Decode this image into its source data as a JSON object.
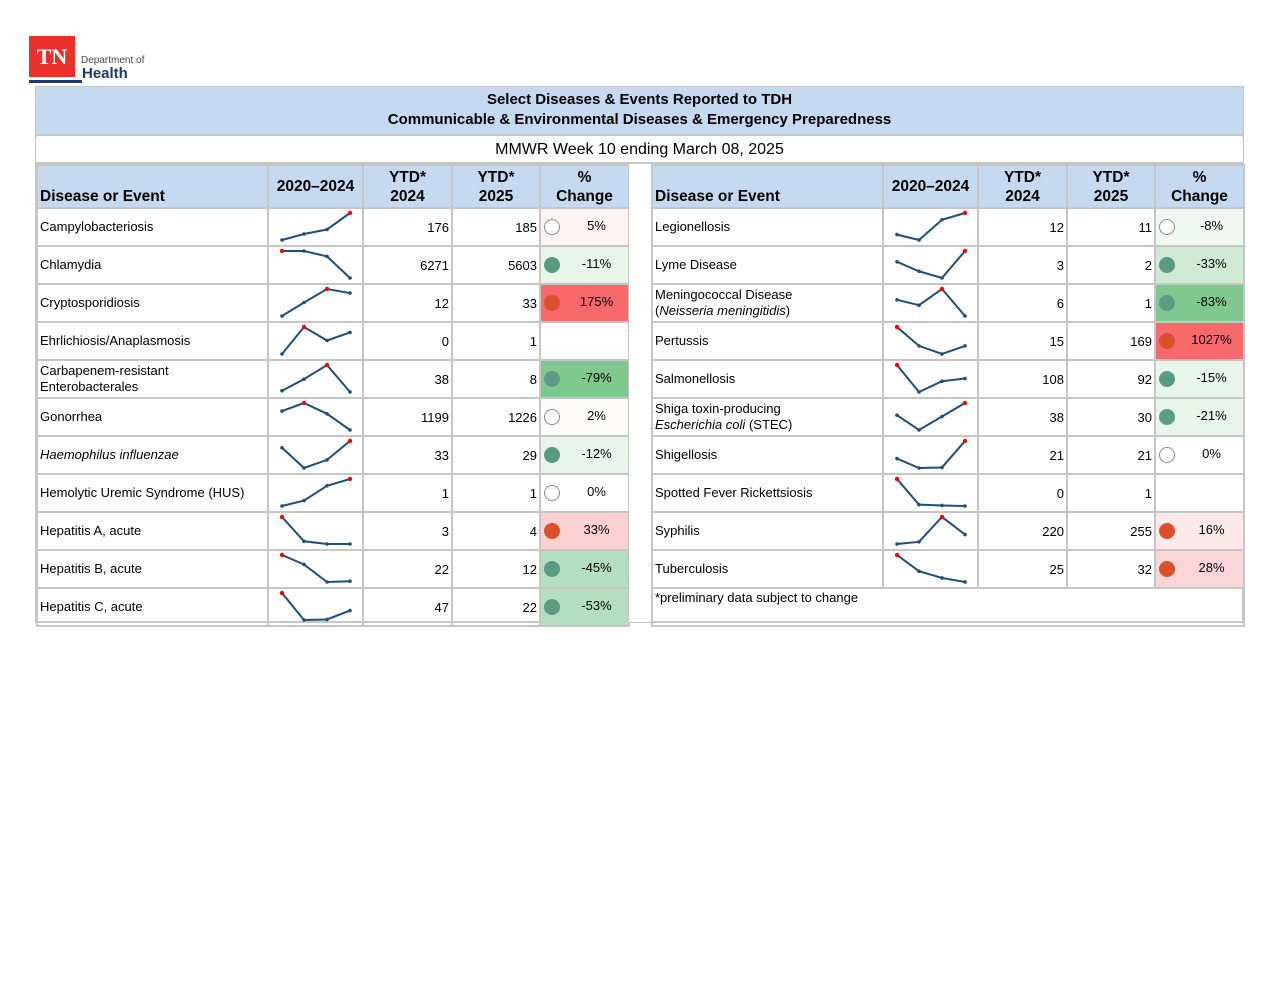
{
  "logo": {
    "mark": "TN",
    "line1": "Department of",
    "line2": "Health"
  },
  "title": {
    "line1": "Select Diseases & Events Reported to TDH",
    "line2": "Communicable & Environmental Diseases & Emergency Preparedness"
  },
  "subtitle": "MMWR Week 10 ending March 08, 2025",
  "columns": {
    "name": "Disease or Event",
    "trend": "2020–2024",
    "ytd2024_l1": "YTD*",
    "ytd2024_l2": "2024",
    "ytd2025_l1": "YTD*",
    "ytd2025_l2": "2025",
    "pct_l1": "%",
    "pct_l2": "Change"
  },
  "colors": {
    "header_bg": "#c5d9f1",
    "border": "#c6c6c6",
    "sparkline": "#1f4e79",
    "sparkline_max": "#ff0000",
    "dot_green": "#5b9b83",
    "dot_red": "#d9502b",
    "pct_bg_strong_red": "#f8696b",
    "pct_bg_light_red": "#fbd0d1",
    "pct_bg_faint_red": "#fdf3f3",
    "pct_bg_strong_green": "#7fc98f",
    "pct_bg_mid_green": "#b4dfbf",
    "pct_bg_light_green": "#e8f5ea",
    "pct_bg_faint_green": "#f1f8f2"
  },
  "left_rows": [
    {
      "name": "Campylobacteriosis",
      "italic": "",
      "trend": [
        10,
        30,
        45,
        100
      ],
      "ytd2024": "176",
      "ytd2025": "185",
      "indicator": "none",
      "pct": "5%",
      "bg": "#fdf3f3"
    },
    {
      "name": "Chlamydia",
      "italic": "",
      "trend": [
        100,
        100,
        80,
        0
      ],
      "ytd2024": "6271",
      "ytd2025": "5603",
      "indicator": "green",
      "pct": "-11%",
      "bg": "#e8f5ea"
    },
    {
      "name": "Cryptosporidiosis",
      "italic": "",
      "trend": [
        0,
        50,
        100,
        85
      ],
      "ytd2024": "12",
      "ytd2025": "33",
      "indicator": "red",
      "pct": "175%",
      "bg": "#f8696b"
    },
    {
      "name": "Ehrlichiosis/Anaplasmosis",
      "italic": "",
      "trend": [
        0,
        100,
        50,
        80
      ],
      "ytd2024": "0",
      "ytd2025": "1",
      "indicator": "",
      "pct": "",
      "bg": "#ffffff"
    },
    {
      "name": "Carbapenem-resistant",
      "name2": "Enterobacterales",
      "italic": "",
      "trend": [
        0,
        45,
        100,
        -5
      ],
      "ytd2024": "38",
      "ytd2025": "8",
      "indicator": "green",
      "pct": "-79%",
      "bg": "#7fc98f"
    },
    {
      "name": "Gonorrhea",
      "italic": "",
      "trend": [
        70,
        100,
        60,
        0
      ],
      "ytd2024": "1199",
      "ytd2025": "1226",
      "indicator": "none",
      "pct": "2%",
      "bg": "#fdfcfb"
    },
    {
      "name": "",
      "italic": "Haemophilus influenzae",
      "trend": [
        75,
        0,
        30,
        100
      ],
      "ytd2024": "33",
      "ytd2025": "29",
      "indicator": "green",
      "pct": "-12%",
      "bg": "#e8f5ea"
    },
    {
      "name": "Hemolytic Uremic Syndrome (HUS)",
      "italic": "",
      "trend": [
        0,
        20,
        75,
        100
      ],
      "ytd2024": "1",
      "ytd2025": "1",
      "indicator": "none",
      "pct": "0%",
      "bg": "#ffffff"
    },
    {
      "name": "Hepatitis A, acute",
      "italic": "",
      "trend": [
        100,
        10,
        0,
        0
      ],
      "ytd2024": "3",
      "ytd2025": "4",
      "indicator": "red",
      "pct": "33%",
      "bg": "#fbd0d1"
    },
    {
      "name": "Hepatitis B, acute",
      "italic": "",
      "trend": [
        100,
        65,
        0,
        3
      ],
      "ytd2024": "22",
      "ytd2025": "12",
      "indicator": "green",
      "pct": "-45%",
      "bg": "#b4dfbf"
    },
    {
      "name": "Hepatitis C, acute",
      "italic": "",
      "trend": [
        100,
        0,
        2,
        35
      ],
      "ytd2024": "47",
      "ytd2025": "22",
      "indicator": "green",
      "pct": "-53%",
      "bg": "#b4dfbf"
    }
  ],
  "right_rows": [
    {
      "name": "Legionellosis",
      "italic": "",
      "trend": [
        20,
        0,
        75,
        100
      ],
      "ytd2024": "12",
      "ytd2025": "11",
      "indicator": "none",
      "pct": "-8%",
      "bg": "#f1f8f2"
    },
    {
      "name": "Lyme Disease",
      "italic": "",
      "trend": [
        60,
        25,
        0,
        100
      ],
      "ytd2024": "3",
      "ytd2025": "2",
      "indicator": "green",
      "pct": "-33%",
      "bg": "#cfe9d5"
    },
    {
      "name": "Meningococcal Disease",
      "name2_pre": "(",
      "italic2": "Neisseria meningitidis",
      "name2_post": ")",
      "trend": [
        60,
        40,
        100,
        0
      ],
      "ytd2024": "6",
      "ytd2025": "1",
      "indicator": "green",
      "pct": "-83%",
      "bg": "#7fc98f"
    },
    {
      "name": "Pertussis",
      "italic": "",
      "trend": [
        100,
        30,
        0,
        30
      ],
      "ytd2024": "15",
      "ytd2025": "169",
      "indicator": "red",
      "pct": "1027%",
      "bg": "#f8696b"
    },
    {
      "name": "Salmonellosis",
      "italic": "",
      "trend": [
        100,
        0,
        40,
        50
      ],
      "ytd2024": "108",
      "ytd2025": "92",
      "indicator": "green",
      "pct": "-15%",
      "bg": "#e8f5ea"
    },
    {
      "name": "Shiga toxin-producing",
      "italic2": "Escherichia coli",
      "name2_post": " (STEC)",
      "trend": [
        55,
        0,
        50,
        100
      ],
      "ytd2024": "38",
      "ytd2025": "30",
      "indicator": "green",
      "pct": "-21%",
      "bg": "#e8f5ea"
    },
    {
      "name": "Shigellosis",
      "italic": "",
      "trend": [
        35,
        0,
        2,
        100
      ],
      "ytd2024": "21",
      "ytd2025": "21",
      "indicator": "none",
      "pct": "0%",
      "bg": "#ffffff"
    },
    {
      "name": "Spotted Fever Rickettsiosis",
      "italic": "",
      "trend": [
        100,
        5,
        2,
        0
      ],
      "ytd2024": "0",
      "ytd2025": "1",
      "indicator": "",
      "pct": "",
      "bg": "#ffffff"
    },
    {
      "name": "Syphilis",
      "italic": "",
      "trend": [
        0,
        8,
        100,
        35
      ],
      "ytd2024": "220",
      "ytd2025": "255",
      "indicator": "red",
      "pct": "16%",
      "bg": "#fde9e9"
    },
    {
      "name": "Tuberculosis",
      "italic": "",
      "trend": [
        100,
        40,
        15,
        0
      ],
      "ytd2024": "25",
      "ytd2025": "32",
      "indicator": "red",
      "pct": "28%",
      "bg": "#fbd6d7"
    }
  ],
  "footnote": "*preliminary data subject to change"
}
